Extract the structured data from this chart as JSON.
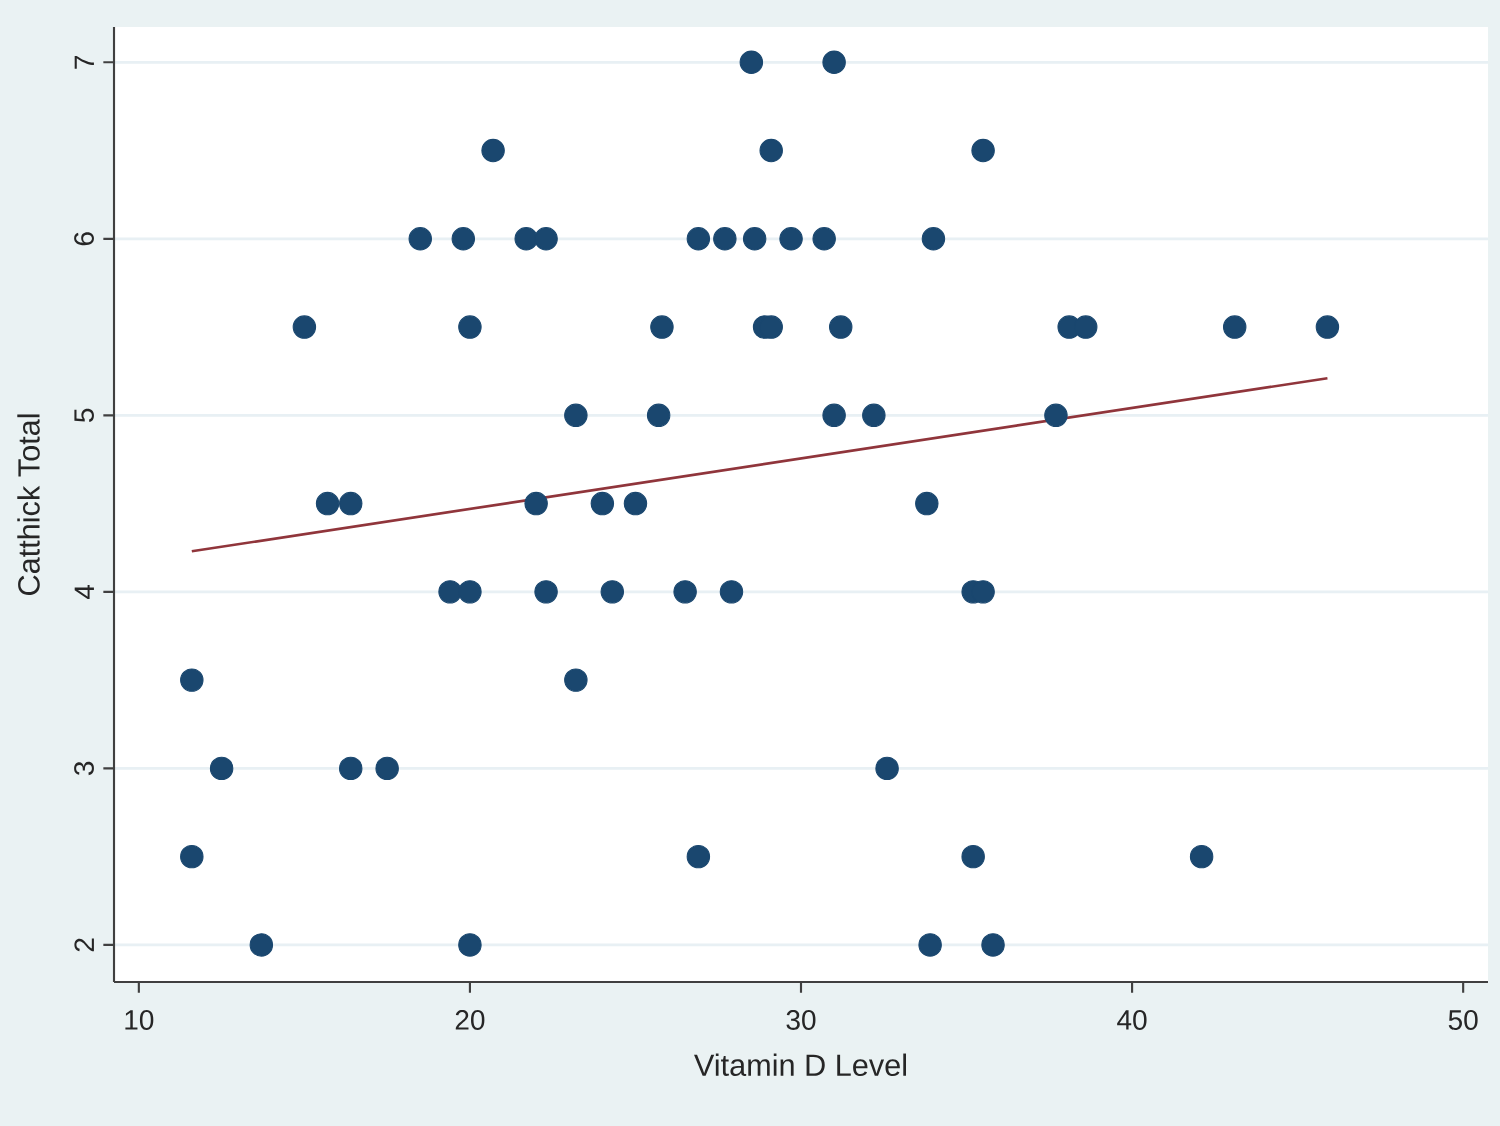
{
  "chart_data": {
    "type": "scatter",
    "xlabel": "Vitamin D Level",
    "ylabel": "Catthick Total",
    "xlim": [
      9.25,
      50.75
    ],
    "ylim": [
      1.79,
      7.2
    ],
    "xticks": [
      10,
      20,
      30,
      40,
      50
    ],
    "yticks": [
      2,
      3,
      4,
      5,
      6,
      7
    ],
    "grid": "y",
    "marker": "circle",
    "series": [
      {
        "color": "#1a476f",
        "x": [
          28.5,
          31.0,
          20.7,
          29.1,
          35.5,
          18.5,
          19.8,
          21.7,
          22.3,
          26.9,
          27.7,
          28.6,
          29.7,
          30.7,
          34.0,
          15.0,
          20.0,
          25.8,
          28.9,
          29.1,
          31.2,
          38.1,
          38.6,
          43.1,
          45.9,
          23.2,
          25.7,
          31.0,
          32.2,
          37.7,
          15.7,
          16.4,
          22.0,
          24.0,
          25.0,
          33.8,
          19.4,
          20.0,
          22.3,
          24.3,
          26.5,
          27.9,
          35.2,
          35.5,
          11.6,
          23.2,
          12.5,
          16.4,
          17.5,
          32.6,
          11.6,
          26.9,
          35.2,
          42.1,
          13.7,
          20.0,
          33.9,
          35.8
        ],
        "values": [
          7,
          7,
          6.5,
          6.5,
          6.5,
          6,
          6,
          6,
          6,
          6,
          6,
          6,
          6,
          6,
          6,
          5.5,
          5.5,
          5.5,
          5.5,
          5.5,
          5.5,
          5.5,
          5.5,
          5.5,
          5.5,
          5,
          5,
          5,
          5,
          5,
          4.5,
          4.5,
          4.5,
          4.5,
          4.5,
          4.5,
          4,
          4,
          4,
          4,
          4,
          4,
          4,
          4,
          3.5,
          3.5,
          3,
          3,
          3,
          3,
          2.5,
          2.5,
          2.5,
          2.5,
          2,
          2,
          2,
          2
        ]
      },
      {
        "type": "line",
        "color": "#90353b",
        "marker": "none",
        "x": [
          11.6,
          45.9
        ],
        "values": [
          4.23,
          5.21
        ]
      }
    ]
  }
}
